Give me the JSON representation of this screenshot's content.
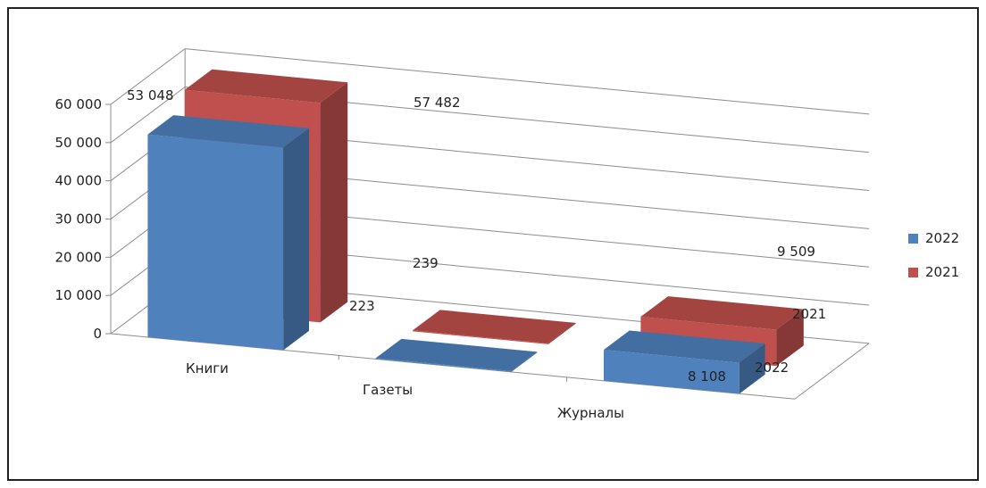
{
  "chart_data": {
    "type": "bar",
    "categories": [
      "Книги",
      "Газеты",
      "Журналы"
    ],
    "series": [
      {
        "name": "2022",
        "values": [
          53048,
          223,
          8108
        ],
        "value_labels": [
          "53 048",
          "223",
          "8 108"
        ],
        "color": "#4f81bd"
      },
      {
        "name": "2021",
        "values": [
          57482,
          239,
          9509
        ],
        "value_labels": [
          "57 482",
          "239",
          "9 509"
        ],
        "color": "#c0504d"
      }
    ],
    "depth_labels": [
      "2022",
      "2021"
    ],
    "y_ticks": [
      "0",
      "10 000",
      "20 000",
      "30 000",
      "40 000",
      "50 000",
      "60 000"
    ],
    "ylim": [
      0,
      60000
    ],
    "legend_position": "right",
    "grid": true,
    "three_d": true
  }
}
